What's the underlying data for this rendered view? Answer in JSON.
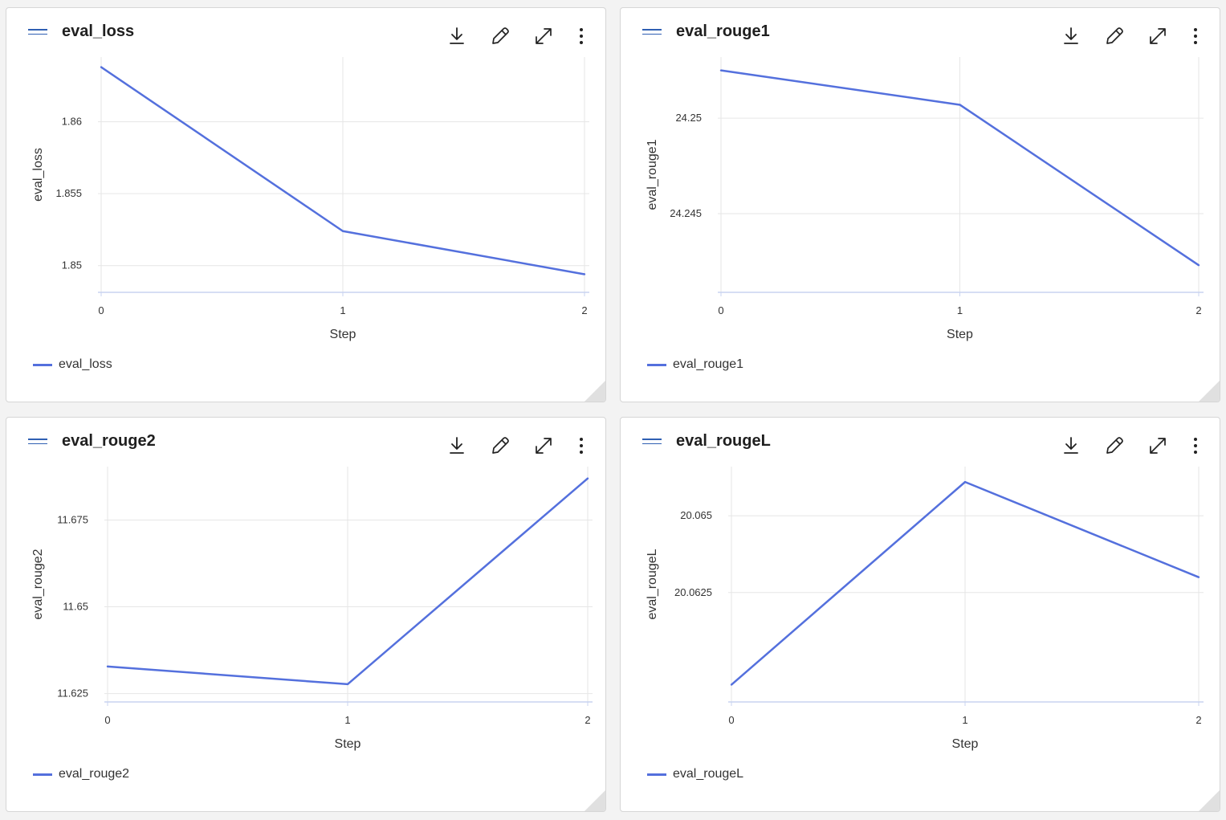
{
  "colors": {
    "series": "#5470dd",
    "grid": "#e6e6e6",
    "axis": "#c8d3f0",
    "handle": "#2f5fb3"
  },
  "toolbar": {
    "download_icon": "download-icon",
    "edit_icon": "pencil-icon",
    "expand_icon": "expand-icon",
    "more_icon": "more-vertical-icon"
  },
  "charts": [
    {
      "title": "eval_loss",
      "legend_label": "eval_loss",
      "chart_data": {
        "type": "line",
        "x": [
          0,
          1,
          2
        ],
        "series": [
          {
            "name": "eval_loss",
            "values": [
              1.8638,
              1.8524,
              1.8494
            ]
          }
        ],
        "xlabel": "Step",
        "ylabel": "eval_loss",
        "xticks": [
          "0",
          "1",
          "2"
        ],
        "yticks": [
          {
            "value": 1.85,
            "label": "1.85"
          },
          {
            "value": 1.855,
            "label": "1.855"
          },
          {
            "value": 1.86,
            "label": "1.86"
          }
        ],
        "xlim": [
          0,
          2
        ],
        "ylim": [
          1.8487,
          1.8645
        ],
        "grid": true,
        "legend": "bottom-left"
      }
    },
    {
      "title": "eval_rouge1",
      "legend_label": "eval_rouge1",
      "chart_data": {
        "type": "line",
        "x": [
          0,
          1,
          2
        ],
        "series": [
          {
            "name": "eval_rouge1",
            "values": [
              24.2525,
              24.2507,
              24.2423
            ]
          }
        ],
        "xlabel": "Step",
        "ylabel": "eval_rouge1",
        "xticks": [
          "0",
          "1",
          "2"
        ],
        "yticks": [
          {
            "value": 24.245,
            "label": "24.245"
          },
          {
            "value": 24.25,
            "label": "24.25"
          }
        ],
        "xlim": [
          0,
          2
        ],
        "ylim": [
          24.2413,
          24.2532
        ],
        "grid": true,
        "legend": "bottom-left"
      }
    },
    {
      "title": "eval_rouge2",
      "legend_label": "eval_rouge2",
      "chart_data": {
        "type": "line",
        "x": [
          0,
          1,
          2
        ],
        "series": [
          {
            "name": "eval_rouge2",
            "values": [
              11.6328,
              11.6277,
              11.687
            ]
          }
        ],
        "xlabel": "Step",
        "ylabel": "eval_rouge2",
        "xticks": [
          "0",
          "1",
          "2"
        ],
        "yticks": [
          {
            "value": 11.625,
            "label": "11.625"
          },
          {
            "value": 11.65,
            "label": "11.65"
          },
          {
            "value": 11.675,
            "label": "11.675"
          }
        ],
        "xlim": [
          0,
          2
        ],
        "ylim": [
          11.6249,
          11.6904
        ],
        "grid": true,
        "legend": "bottom-left"
      }
    },
    {
      "title": "eval_rougeL",
      "legend_label": "eval_rougeL",
      "chart_data": {
        "type": "line",
        "x": [
          0,
          1,
          2
        ],
        "series": [
          {
            "name": "eval_rougeL",
            "values": [
              20.0595,
              20.0661,
              20.063
            ]
          }
        ],
        "xlabel": "Step",
        "ylabel": "eval_rougeL",
        "xticks": [
          "0",
          "1",
          "2"
        ],
        "yticks": [
          {
            "value": 20.0625,
            "label": "20.0625"
          },
          {
            "value": 20.065,
            "label": "20.065"
          }
        ],
        "xlim": [
          0,
          2
        ],
        "ylim": [
          20.0592,
          20.0666
        ],
        "grid": true,
        "legend": "bottom-left"
      }
    }
  ]
}
